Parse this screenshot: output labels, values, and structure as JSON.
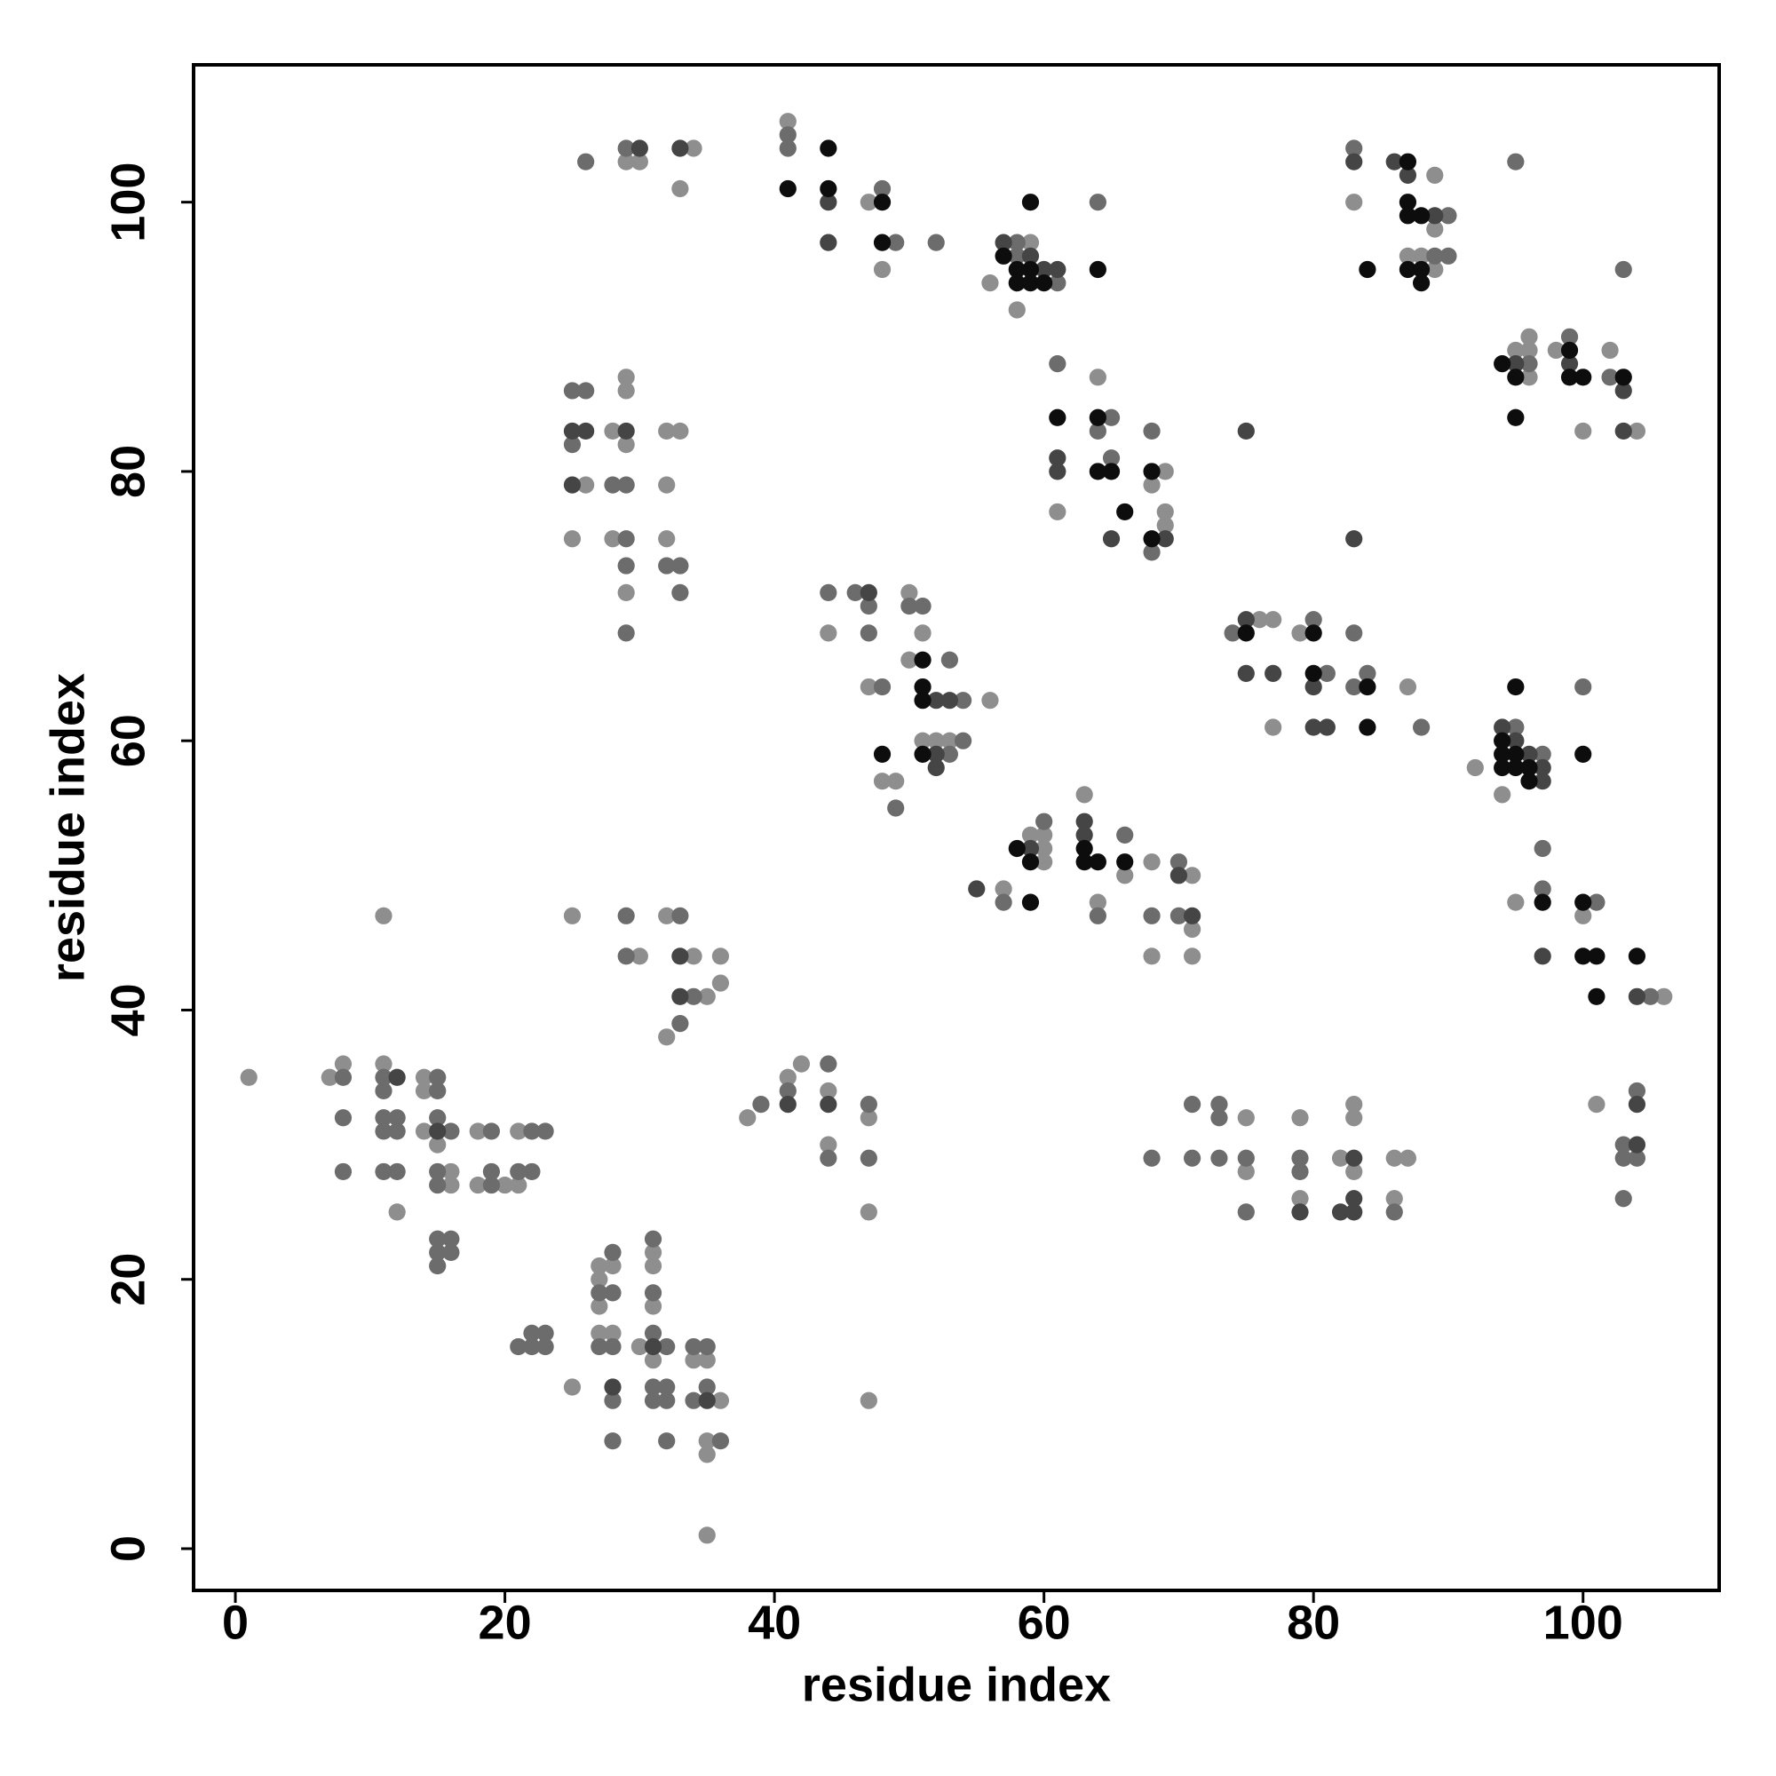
{
  "chart_data": {
    "type": "scatter",
    "xlabel": "residue index",
    "ylabel": "residue index",
    "xlim": [
      -3.1,
      110.1
    ],
    "ylim": [
      -3.1,
      110.2
    ],
    "xticks": [
      0,
      20,
      40,
      60,
      80,
      100
    ],
    "yticks": [
      0,
      20,
      40,
      60,
      80,
      100
    ],
    "grid": false,
    "series": [
      {
        "color": "#8e8e8e",
        "x": [
          1,
          7,
          8,
          11,
          12,
          14,
          14,
          14,
          15,
          16,
          16,
          18,
          18,
          20,
          21,
          21,
          25,
          27,
          28,
          27,
          27,
          27,
          28,
          31,
          31,
          31,
          30,
          31,
          34,
          35,
          36,
          35,
          35,
          35,
          25,
          32,
          30,
          34,
          36,
          36,
          35,
          32,
          11,
          26,
          25,
          29,
          29,
          28,
          29,
          28,
          29,
          32,
          33,
          32,
          32,
          29,
          30,
          34,
          33,
          41,
          47,
          48,
          56,
          59,
          58,
          83,
          89,
          89,
          87,
          88,
          89,
          95,
          96,
          96,
          96,
          98,
          102,
          104,
          100,
          61,
          64,
          69,
          68,
          69,
          69,
          44,
          47,
          50,
          51,
          50,
          56,
          51,
          52,
          53,
          48,
          49,
          57,
          59,
          60,
          60,
          60,
          63,
          66,
          64,
          68,
          71,
          71,
          68,
          71,
          76,
          77,
          77,
          79,
          87,
          92,
          94,
          95,
          100,
          106,
          101,
          38,
          41,
          42,
          44,
          44,
          47,
          47,
          47,
          75,
          75,
          79,
          79,
          82,
          83,
          83,
          83,
          86,
          87,
          86
        ],
        "y": [
          35,
          35,
          36,
          36,
          25,
          35,
          34,
          31,
          30,
          28,
          27,
          31,
          27,
          27,
          27,
          31,
          12,
          21,
          21,
          20,
          18,
          16,
          16,
          22,
          21,
          18,
          15,
          14,
          14,
          14,
          11,
          8,
          7,
          1,
          47,
          47,
          44,
          44,
          44,
          42,
          41,
          38,
          47,
          79,
          75,
          87,
          86,
          83,
          82,
          75,
          71,
          83,
          83,
          79,
          75,
          103,
          103,
          104,
          101,
          106,
          100,
          95,
          94,
          97,
          92,
          100,
          102,
          98,
          96,
          96,
          95,
          89,
          89,
          90,
          87,
          89,
          89,
          83,
          83,
          77,
          87,
          80,
          79,
          77,
          76,
          68,
          64,
          71,
          68,
          66,
          63,
          60,
          60,
          60,
          57,
          57,
          49,
          53,
          53,
          52,
          51,
          56,
          50,
          48,
          51,
          50,
          46,
          44,
          44,
          69,
          69,
          61,
          68,
          64,
          58,
          56,
          48,
          47,
          41,
          33,
          32,
          35,
          36,
          34,
          30,
          32,
          25,
          11,
          32,
          28,
          32,
          26,
          29,
          33,
          32,
          28,
          29,
          29,
          26
        ]
      },
      {
        "color": "#6c6c6c",
        "x": [
          8,
          8,
          8,
          11,
          11,
          11,
          12,
          11,
          12,
          11,
          12,
          15,
          15,
          15,
          16,
          15,
          15,
          15,
          16,
          15,
          16,
          15,
          19,
          19,
          19,
          21,
          22,
          22,
          23,
          21,
          22,
          23,
          22,
          23,
          28,
          27,
          28,
          27,
          28,
          28,
          28,
          31,
          31,
          32,
          31,
          31,
          32,
          31,
          32,
          32,
          34,
          35,
          35,
          34,
          36,
          29,
          33,
          29,
          34,
          33,
          25,
          26,
          25,
          28,
          29,
          29,
          29,
          29,
          32,
          33,
          33,
          26,
          29,
          41,
          41,
          48,
          49,
          52,
          58,
          58,
          61,
          64,
          83,
          90,
          89,
          90,
          95,
          96,
          99,
          102,
          103,
          61,
          65,
          64,
          65,
          68,
          68,
          44,
          46,
          47,
          47,
          48,
          50,
          51,
          53,
          54,
          54,
          53,
          49,
          57,
          60,
          66,
          64,
          70,
          68,
          70,
          74,
          80,
          81,
          83,
          83,
          84,
          88,
          95,
          97,
          100,
          97,
          97,
          101,
          105,
          104,
          103,
          103,
          104,
          103,
          39,
          41,
          44,
          44,
          47,
          47,
          68,
          71,
          71,
          73,
          73,
          73,
          75,
          75,
          79,
          79,
          86
        ],
        "y": [
          35,
          32,
          28,
          35,
          34,
          32,
          32,
          31,
          31,
          28,
          28,
          35,
          34,
          32,
          31,
          28,
          27,
          23,
          23,
          22,
          22,
          21,
          31,
          27,
          28,
          28,
          28,
          31,
          31,
          15,
          16,
          16,
          15,
          15,
          22,
          19,
          19,
          15,
          15,
          11,
          8,
          23,
          19,
          15,
          16,
          12,
          12,
          11,
          11,
          8,
          15,
          15,
          12,
          11,
          8,
          47,
          47,
          44,
          41,
          39,
          86,
          86,
          82,
          79,
          79,
          75,
          73,
          68,
          73,
          73,
          71,
          103,
          104,
          105,
          104,
          101,
          97,
          97,
          97,
          96,
          94,
          100,
          104,
          99,
          96,
          96,
          103,
          88,
          90,
          87,
          95,
          88,
          84,
          83,
          81,
          83,
          74,
          71,
          71,
          70,
          68,
          64,
          70,
          70,
          66,
          63,
          60,
          59,
          55,
          48,
          54,
          53,
          47,
          51,
          47,
          47,
          68,
          69,
          65,
          68,
          64,
          65,
          61,
          61,
          59,
          64,
          52,
          49,
          48,
          41,
          34,
          30,
          29,
          29,
          26,
          33,
          34,
          36,
          29,
          33,
          29,
          29,
          33,
          29,
          33,
          32,
          29,
          29,
          25,
          29,
          28,
          25
        ]
      },
      {
        "color": "#454545",
        "x": [
          12,
          15,
          28,
          31,
          35,
          33,
          33,
          25,
          26,
          25,
          29,
          30,
          33,
          44,
          44,
          57,
          59,
          60,
          61,
          83,
          86,
          87,
          89,
          95,
          99,
          103,
          103,
          61,
          61,
          65,
          69,
          75,
          83,
          47,
          52,
          53,
          52,
          52,
          55,
          59,
          63,
          63,
          70,
          71,
          75,
          75,
          77,
          80,
          80,
          81,
          94,
          95,
          96,
          97,
          97,
          97,
          104,
          104,
          104,
          41,
          44,
          79,
          83,
          83,
          82,
          83
        ],
        "y": [
          35,
          31,
          12,
          15,
          11,
          44,
          41,
          83,
          83,
          79,
          83,
          104,
          104,
          100,
          97,
          97,
          96,
          95,
          95,
          103,
          103,
          102,
          99,
          88,
          88,
          86,
          83,
          81,
          80,
          75,
          75,
          83,
          75,
          71,
          63,
          63,
          59,
          58,
          49,
          52,
          54,
          53,
          50,
          47,
          69,
          65,
          65,
          64,
          61,
          61,
          61,
          60,
          59,
          58,
          57,
          44,
          41,
          33,
          30,
          33,
          33,
          25,
          29,
          26,
          25,
          25
        ]
      },
      {
        "color": "#0d0d0d",
        "x": [
          44,
          41,
          44,
          48,
          48,
          57,
          58,
          59,
          58,
          59,
          60,
          59,
          64,
          87,
          87,
          87,
          88,
          87,
          88,
          88,
          84,
          94,
          95,
          95,
          99,
          99,
          100,
          103,
          61,
          64,
          64,
          65,
          66,
          68,
          68,
          51,
          51,
          51,
          51,
          48,
          58,
          59,
          59,
          63,
          63,
          64,
          66,
          75,
          80,
          80,
          84,
          84,
          95,
          94,
          94,
          95,
          94,
          95,
          96,
          96,
          100,
          97,
          100,
          100,
          101,
          104,
          101
        ],
        "y": [
          104,
          101,
          101,
          100,
          97,
          96,
          95,
          95,
          94,
          94,
          94,
          100,
          95,
          103,
          100,
          99,
          99,
          95,
          95,
          94,
          95,
          88,
          87,
          84,
          89,
          87,
          87,
          87,
          84,
          84,
          80,
          80,
          77,
          80,
          75,
          66,
          64,
          63,
          59,
          59,
          52,
          51,
          48,
          52,
          51,
          51,
          51,
          68,
          68,
          65,
          64,
          61,
          64,
          60,
          59,
          59,
          58,
          58,
          58,
          57,
          59,
          48,
          48,
          44,
          44,
          44,
          41
        ]
      }
    ]
  }
}
